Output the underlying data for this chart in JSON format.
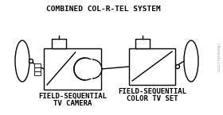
{
  "bg_color": "#ffffff",
  "title": "COMBINED COL-R-TEL SYSTEM",
  "title_fontsize": 6.8,
  "label_left_line1": "FIELD-SEQUENTIAL",
  "label_left_line2": "TV CAMERA",
  "label_right_line1": "FIELD-SEQUENTIAL",
  "label_right_line2": "COLOR TV SET",
  "label_fontsize": 6.5,
  "watermark": "Hawestv.com",
  "watermark_color": "#999999",
  "lw": 1.0
}
